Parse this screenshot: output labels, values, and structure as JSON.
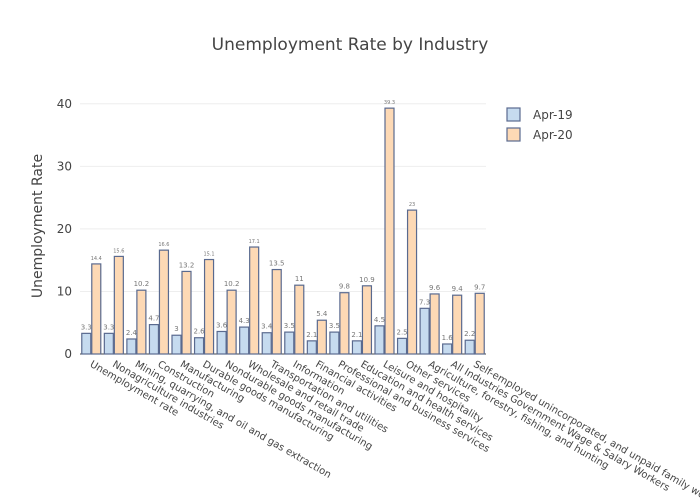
{
  "chart_data": {
    "type": "bar",
    "title": "Unemployment Rate by Industry",
    "xlabel": "",
    "ylabel": "Unemployment Rate",
    "ylim": [
      0,
      43
    ],
    "yticks": [
      0,
      10,
      20,
      30,
      40
    ],
    "grid": true,
    "legend_placement": "top-right",
    "categories": [
      "Unemployment rate",
      "Nonagriculture industries",
      "Mining, quarrying, and oil and gas extraction",
      "Construction",
      "Manufacturing",
      "Durable goods manufacturing",
      "Nondurable goods manufacturing",
      "Wholesale and retail trade",
      "Transportation and utilities",
      "Information",
      "Financial activities",
      "Professional and business services",
      "Education and health services",
      "Leisure and hospitality",
      "Other services",
      "Agriculture, forestry, fishing, and hunting",
      "All Industries Government Wage & Salary Workers",
      "Self-employed unincorporated, and unpaid family workers"
    ],
    "series": [
      {
        "name": "Apr-19",
        "color": "#c6dbef",
        "stroke": "#5a6a8f",
        "values": [
          3.3,
          3.3,
          2.4,
          4.7,
          3,
          2.6,
          3.6,
          4.3,
          3.4,
          3.5,
          2.1,
          3.5,
          2.1,
          4.5,
          2.5,
          7.3,
          1.6,
          2.2
        ],
        "labels": [
          "3.3",
          "3.3",
          "2.4",
          "4.7",
          "3",
          "2.6",
          "3.6",
          "4.3",
          "3.4",
          "3.5",
          "2.1",
          "3.5",
          "2.1",
          "4.5",
          "2.5",
          "7.3",
          "1.6",
          "2.2"
        ]
      },
      {
        "name": "Apr-20",
        "color": "#fdd9b5",
        "stroke": "#5a6a8f",
        "values": [
          14.4,
          15.6,
          10.2,
          16.6,
          13.2,
          15.1,
          10.2,
          17.1,
          13.5,
          11,
          5.4,
          9.8,
          10.9,
          39.3,
          23,
          9.6,
          9.4,
          9.7
        ],
        "labels": [
          "14.4",
          "15.6",
          "10.2",
          "16.6",
          "13.2",
          "15.1",
          "10.2",
          "17.1",
          "13.5",
          "11",
          "5.4",
          "9.8",
          "10.9",
          "39.3",
          "23",
          "9.6",
          "9.4",
          "9.7"
        ]
      }
    ]
  }
}
